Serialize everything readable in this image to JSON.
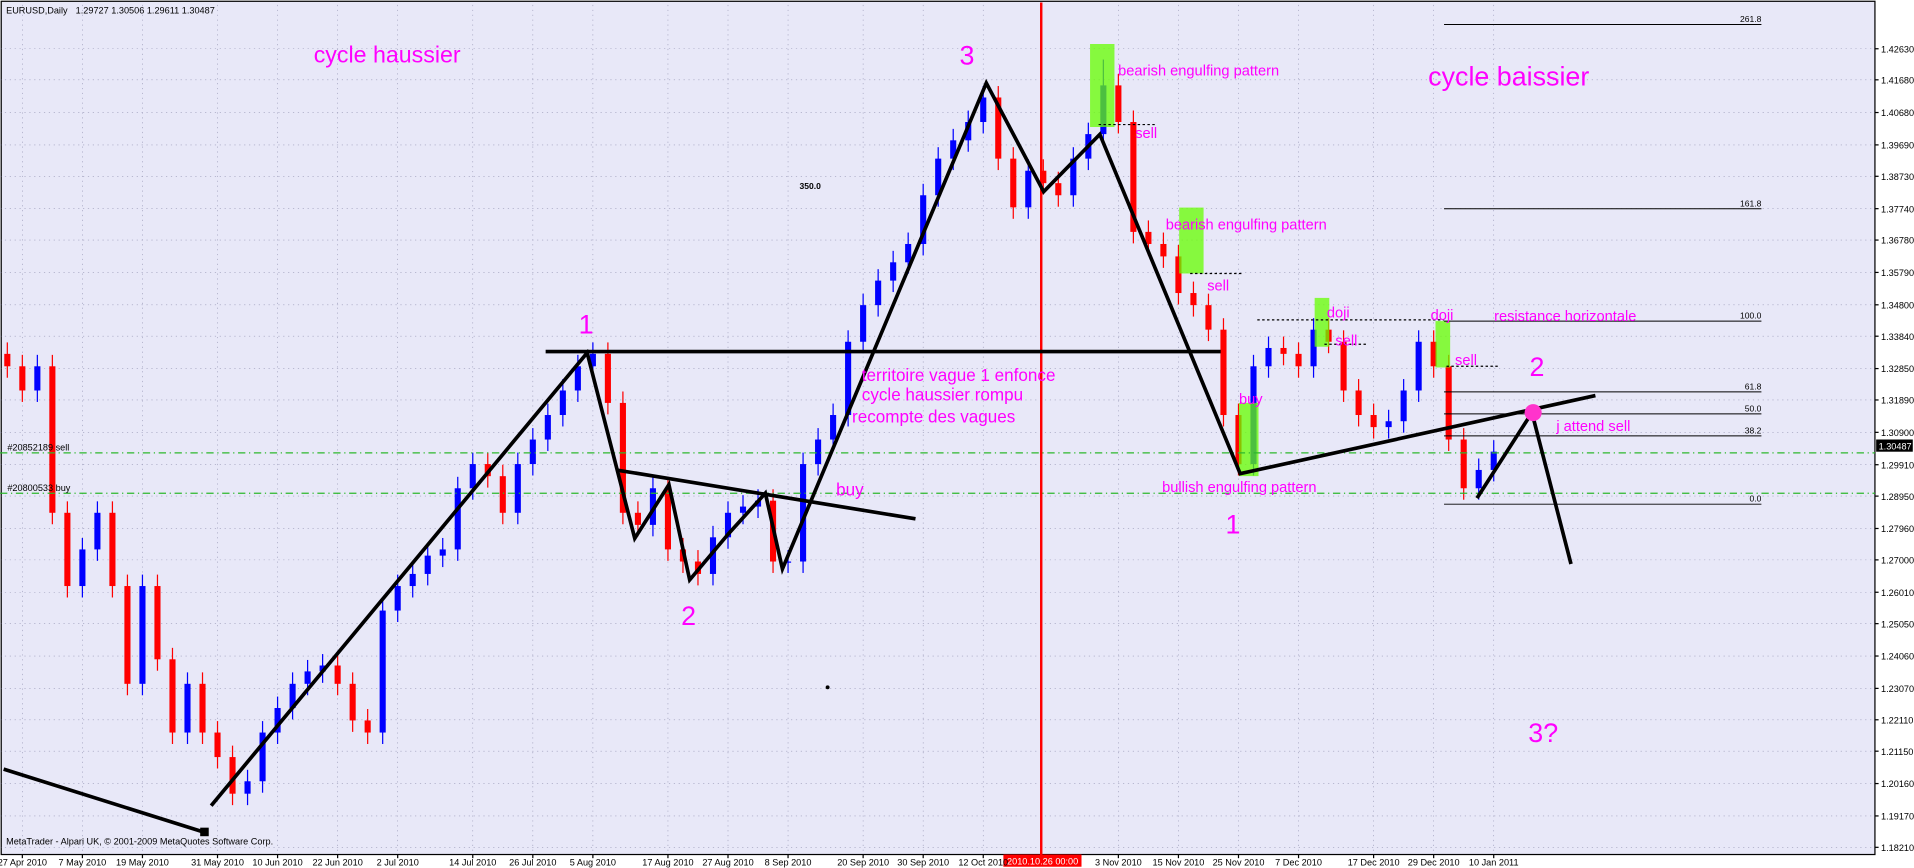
{
  "chart_data": {
    "type": "candlestick",
    "title": "EURUSD,Daily",
    "subtitle": "1.29727 1.30506 1.29611 1.30487",
    "footer": "MetaTrader - Alpari UK, © 2001-2009 MetaQuotes Software Corp.",
    "cursor_label": "2010.10.26 00:00",
    "price_label": "1.30487",
    "orders": [
      "#20852189 sell",
      "#20800533 buy"
    ],
    "fib_labels": [
      "261.8",
      "161.8",
      "100.0",
      "61.8",
      "50.0",
      "38.2",
      "0.0"
    ],
    "annotations": [
      "cycle haussier",
      "3",
      "cycle baissier",
      "1",
      "2",
      "territoire vague 1 enfonce",
      "cycle haussier rompu",
      "recompte des vagues",
      "buy",
      "bearish engulfing pattern",
      "sell",
      "bearish engulfing pattern",
      "sell",
      "doji",
      "sell",
      "doji",
      "sell",
      "resistance horizontale",
      "2",
      "j attend sell",
      "buy",
      "bullish engulfing pattern",
      "1",
      "3?",
      "350.0"
    ],
    "up_color": "#0000ff",
    "down_color": "#ff0000",
    "grid": true,
    "categories": [
      null,
      "27 Apr 2010",
      null,
      null,
      null,
      "7 May 2010",
      null,
      null,
      null,
      "19 May 2010",
      null,
      null,
      null,
      null,
      "31 May 2010",
      null,
      null,
      null,
      "10 Jun 2010",
      null,
      null,
      null,
      "22 Jun 2010",
      null,
      null,
      null,
      "2 Jul 2010",
      null,
      null,
      null,
      null,
      "14 Jul 2010",
      null,
      null,
      null,
      "26 Jul 2010",
      null,
      null,
      null,
      "5 Aug 2010",
      null,
      null,
      null,
      null,
      "17 Aug 2010",
      null,
      null,
      null,
      "27 Aug 2010",
      null,
      null,
      null,
      "8 Sep 2010",
      null,
      null,
      null,
      null,
      "20 Sep 2010",
      null,
      null,
      null,
      "30 Sep 2010",
      null,
      null,
      null,
      "12 Oct 2010",
      null,
      null,
      null,
      null,
      null,
      null,
      null,
      null,
      "3 Nov 2010",
      null,
      null,
      null,
      "15 Nov 2010",
      null,
      null,
      null,
      "25 Nov 2010",
      null,
      null,
      null,
      "7 Dec 2010",
      null,
      null,
      null,
      null,
      "17 Dec 2010",
      null,
      null,
      null,
      "29 Dec 2010",
      null,
      null,
      null,
      "10 Jan 2011"
    ],
    "open": [
      1.333,
      1.3292,
      1.3218,
      1.3292,
      1.2844,
      1.262,
      1.2732,
      1.2844,
      1.262,
      1.2321,
      1.262,
      1.2396,
      1.2172,
      1.2321,
      1.2172,
      1.2097,
      1.1985,
      1.2023,
      1.2172,
      1.2247,
      1.2321,
      1.2359,
      1.2377,
      1.2321,
      1.2209,
      1.2172,
      1.2545,
      1.262,
      1.2657,
      1.2713,
      1.2732,
      1.2919,
      1.2993,
      1.2956,
      1.2844,
      1.2993,
      1.3068,
      1.3143,
      1.3218,
      1.3292,
      1.333,
      1.318,
      1.2844,
      1.2807,
      1.2919,
      1.2732,
      1.2695,
      1.2657,
      1.2769,
      1.2844,
      1.2863,
      1.2881,
      1.2695,
      1.2695,
      1.2993,
      1.3068,
      1.3143,
      1.3367,
      1.3479,
      1.3554,
      1.361,
      1.3666,
      1.3815,
      1.3927,
      1.3983,
      1.4039,
      1.4114,
      1.3927,
      1.3778,
      1.389,
      1.3852,
      1.3815,
      1.3927,
      1.4002,
      1.4151,
      1.4039,
      1.3703,
      1.3666,
      1.3628,
      1.3516,
      1.3479,
      1.3404,
      1.3143,
      1.2993,
      1.3292,
      1.3348,
      1.333,
      1.3292,
      1.3404,
      1.3367,
      1.3218,
      1.3143,
      1.3106,
      1.3124,
      1.3218,
      1.3367,
      1.3292,
      1.3068,
      1.2919,
      1.2975
    ],
    "high": [
      1.3365,
      1.3327,
      1.3327,
      1.3327,
      1.2879,
      1.2767,
      1.2879,
      1.2879,
      1.2655,
      1.2655,
      1.2655,
      1.2431,
      1.2356,
      1.2356,
      1.2207,
      1.2132,
      1.2058,
      1.2207,
      1.2282,
      1.2356,
      1.2394,
      1.2412,
      1.2412,
      1.2356,
      1.2244,
      1.258,
      1.2655,
      1.2692,
      1.2748,
      1.2767,
      1.2954,
      1.3028,
      1.3028,
      1.2991,
      1.3028,
      1.3103,
      1.3178,
      1.3253,
      1.3327,
      1.3365,
      1.3365,
      1.3215,
      1.2879,
      1.2954,
      1.2954,
      1.2767,
      1.273,
      1.2804,
      1.2879,
      1.2898,
      1.2916,
      1.2916,
      1.273,
      1.3028,
      1.3103,
      1.3178,
      1.3402,
      1.3514,
      1.3589,
      1.3645,
      1.3701,
      1.385,
      1.3962,
      1.4018,
      1.4074,
      1.4149,
      1.4149,
      1.3962,
      1.3925,
      1.3925,
      1.3887,
      1.3962,
      1.4037,
      1.423,
      1.4186,
      1.4074,
      1.3738,
      1.3701,
      1.3663,
      1.3551,
      1.3514,
      1.3439,
      1.3178,
      1.3327,
      1.3383,
      1.3383,
      1.3365,
      1.3439,
      1.3439,
      1.3402,
      1.3253,
      1.3178,
      1.3159,
      1.3253,
      1.3402,
      1.3402,
      1.3327,
      1.3103,
      1.301,
      1.3066
    ],
    "low": [
      1.3257,
      1.3183,
      1.3183,
      1.2809,
      1.2585,
      1.2585,
      1.2697,
      1.2585,
      1.2286,
      1.2286,
      1.2361,
      1.2137,
      1.2137,
      1.2137,
      1.2062,
      1.195,
      1.195,
      1.1988,
      1.2137,
      1.2212,
      1.2286,
      1.2324,
      1.2286,
      1.2174,
      1.2137,
      1.2137,
      1.251,
      1.2585,
      1.2622,
      1.2678,
      1.2697,
      1.2884,
      1.2921,
      1.2809,
      1.2809,
      1.2958,
      1.3033,
      1.3108,
      1.3183,
      1.3257,
      1.3145,
      1.2809,
      1.2772,
      1.2772,
      1.2697,
      1.266,
      1.2622,
      1.2622,
      1.2734,
      1.2809,
      1.2828,
      1.266,
      1.266,
      1.266,
      1.2958,
      1.3033,
      1.3108,
      1.3332,
      1.3444,
      1.3519,
      1.3575,
      1.3631,
      1.378,
      1.3892,
      1.3948,
      1.4004,
      1.3892,
      1.3743,
      1.3743,
      1.3817,
      1.378,
      1.378,
      1.3892,
      1.3967,
      1.4004,
      1.3668,
      1.3631,
      1.3593,
      1.3481,
      1.3444,
      1.3369,
      1.3108,
      1.2958,
      1.2958,
      1.3257,
      1.3295,
      1.3257,
      1.3257,
      1.3332,
      1.3183,
      1.3108,
      1.3071,
      1.3071,
      1.3089,
      1.3183,
      1.3257,
      1.3033,
      1.2884,
      1.2884,
      1.294
    ],
    "close": [
      1.3292,
      1.3218,
      1.3292,
      1.2844,
      1.262,
      1.2732,
      1.2844,
      1.262,
      1.2321,
      1.262,
      1.2396,
      1.2172,
      1.2321,
      1.2172,
      1.2097,
      1.1985,
      1.2023,
      1.2172,
      1.2247,
      1.2321,
      1.2359,
      1.2377,
      1.2321,
      1.2209,
      1.2172,
      1.2545,
      1.262,
      1.2657,
      1.2713,
      1.2732,
      1.2919,
      1.2993,
      1.2956,
      1.2844,
      1.2993,
      1.3068,
      1.3143,
      1.3218,
      1.3292,
      1.333,
      1.318,
      1.2844,
      1.2807,
      1.2919,
      1.2732,
      1.2695,
      1.2657,
      1.2769,
      1.2844,
      1.2863,
      1.2881,
      1.2695,
      1.2695,
      1.2993,
      1.3068,
      1.3143,
      1.3367,
      1.3479,
      1.3554,
      1.361,
      1.3666,
      1.3815,
      1.3927,
      1.3983,
      1.4039,
      1.4114,
      1.3927,
      1.3778,
      1.389,
      1.3852,
      1.3815,
      1.3927,
      1.4002,
      1.4151,
      1.4039,
      1.3703,
      1.3666,
      1.3628,
      1.3516,
      1.3479,
      1.3404,
      1.3143,
      1.2993,
      1.3292,
      1.3348,
      1.333,
      1.3292,
      1.3404,
      1.3367,
      1.3218,
      1.3143,
      1.3106,
      1.3124,
      1.3218,
      1.3367,
      1.3292,
      1.3068,
      1.2919,
      1.2975,
      1.3031
    ],
    "ylim": [
      1.1799,
      1.4397
    ],
    "yticks": [
      {
        "value": 1.4263,
        "label": "1.42630"
      },
      {
        "value": 1.4168,
        "label": "1.41680"
      },
      {
        "value": 1.4068,
        "label": "1.40680"
      },
      {
        "value": 1.3969,
        "label": "1.39690"
      },
      {
        "value": 1.3873,
        "label": "1.38730"
      },
      {
        "value": 1.3774,
        "label": "1.37740"
      },
      {
        "value": 1.3678,
        "label": "1.36780"
      },
      {
        "value": 1.3579,
        "label": "1.35790"
      },
      {
        "value": 1.348,
        "label": "1.34800"
      },
      {
        "value": 1.3384,
        "label": "1.33840"
      },
      {
        "value": 1.3285,
        "label": "1.32850"
      },
      {
        "value": 1.3189,
        "label": "1.31890"
      },
      {
        "value": 1.309,
        "label": "1.30900"
      },
      {
        "value": 1.2991,
        "label": "1.29910"
      },
      {
        "value": 1.2895,
        "label": "1.28950"
      },
      {
        "value": 1.2796,
        "label": "1.27960"
      },
      {
        "value": 1.27,
        "label": "1.27000"
      },
      {
        "value": 1.2601,
        "label": "1.26010"
      },
      {
        "value": 1.2505,
        "label": "1.25050"
      },
      {
        "value": 1.2406,
        "label": "1.24060"
      },
      {
        "value": 1.2307,
        "label": "1.23070"
      },
      {
        "value": 1.2211,
        "label": "1.22110"
      },
      {
        "value": 1.2115,
        "label": "1.21150"
      },
      {
        "value": 1.2016,
        "label": "1.20160"
      },
      {
        "value": 1.1917,
        "label": "1.19170"
      },
      {
        "value": 1.1821,
        "label": "1.18210"
      }
    ]
  }
}
